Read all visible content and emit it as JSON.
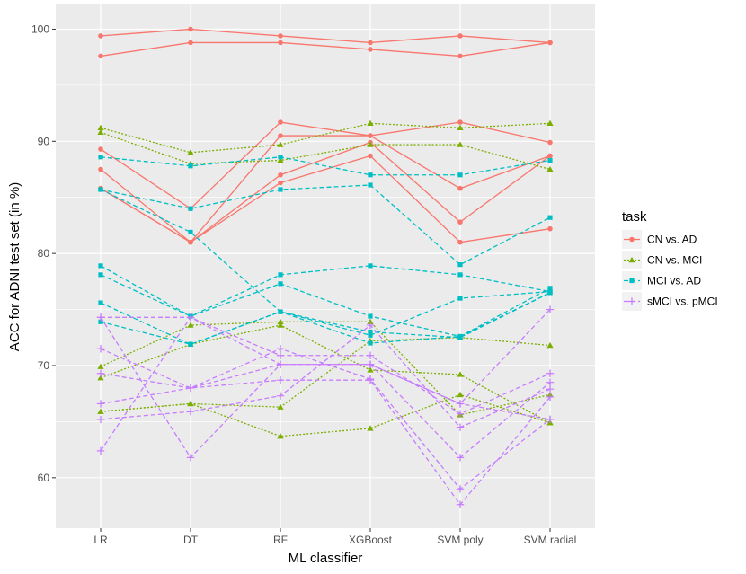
{
  "chart_data": {
    "type": "line",
    "title": "",
    "xlabel": "ML classifier",
    "ylabel": "ACC for ADNI test set (in %)",
    "categories": [
      "LR",
      "DT",
      "RF",
      "XGBoost",
      "SVM poly",
      "SVM radial"
    ],
    "ylim": [
      55.5,
      102.2
    ],
    "yticks": [
      60,
      70,
      80,
      90,
      100
    ],
    "grid": true,
    "legend": {
      "title": "task",
      "placement": "right"
    },
    "tasks": [
      {
        "name": "CN vs. AD",
        "color": "#F8766D",
        "marker": "circle",
        "linestyle": "solid",
        "lines": [
          [
            99.4,
            100.0,
            99.4,
            98.8,
            99.4,
            98.8
          ],
          [
            97.6,
            98.8,
            98.8,
            98.2,
            97.6,
            98.8
          ],
          [
            89.3,
            84.0,
            91.7,
            90.5,
            91.7,
            89.9
          ],
          [
            87.5,
            81.0,
            90.5,
            90.5,
            85.8,
            88.7
          ],
          [
            85.8,
            81.0,
            87.0,
            89.9,
            82.8,
            88.7
          ],
          [
            85.8,
            81.0,
            86.3,
            88.7,
            81.0,
            82.2
          ]
        ]
      },
      {
        "name": "CN vs. MCI",
        "color": "#7CAE00",
        "marker": "triangle",
        "linestyle": "dotted",
        "lines": [
          [
            91.2,
            89.0,
            89.7,
            91.6,
            91.2,
            91.6
          ],
          [
            90.8,
            88.0,
            88.3,
            89.7,
            89.7,
            87.5
          ],
          [
            69.9,
            73.6,
            73.9,
            73.9,
            65.6,
            67.4
          ],
          [
            68.9,
            71.9,
            73.6,
            69.6,
            69.2,
            64.9
          ],
          [
            65.9,
            66.6,
            66.3,
            72.2,
            72.5,
            71.8
          ],
          [
            65.9,
            66.6,
            63.7,
            64.4,
            67.4,
            64.9
          ]
        ]
      },
      {
        "name": "MCI vs. AD",
        "color": "#00BFC4",
        "marker": "square",
        "linestyle": "dashed",
        "lines": [
          [
            88.6,
            87.8,
            88.6,
            87.0,
            87.0,
            88.3
          ],
          [
            85.7,
            84.0,
            85.7,
            86.1,
            79.0,
            83.2
          ],
          [
            78.9,
            74.4,
            78.1,
            78.9,
            78.1,
            76.6
          ],
          [
            78.1,
            74.4,
            77.3,
            74.4,
            72.6,
            76.9
          ],
          [
            75.6,
            71.9,
            74.8,
            72.7,
            76.0,
            76.6
          ],
          [
            73.9,
            71.9,
            74.8,
            72.0,
            72.6,
            76.5
          ],
          [
            85.7,
            81.9,
            74.8,
            73.0,
            72.5,
            76.5
          ]
        ]
      },
      {
        "name": "sMCI vs. pMCI",
        "color": "#C77CFF",
        "marker": "plus",
        "linestyle": "dashed",
        "lines": [
          [
            74.3,
            74.3,
            70.9,
            70.9,
            65.7,
            69.3
          ],
          [
            71.5,
            68.0,
            70.1,
            70.1,
            61.8,
            68.5
          ],
          [
            69.3,
            68.0,
            71.5,
            68.8,
            59.0,
            65.2
          ],
          [
            66.6,
            68.0,
            68.7,
            68.7,
            57.6,
            67.2
          ],
          [
            65.2,
            65.9,
            67.3,
            73.6,
            64.5,
            67.9
          ],
          [
            62.4,
            74.3,
            70.1,
            70.1,
            66.6,
            75.0
          ],
          [
            74.3,
            61.8,
            70.1,
            70.1,
            66.6,
            65.2
          ]
        ]
      }
    ]
  }
}
